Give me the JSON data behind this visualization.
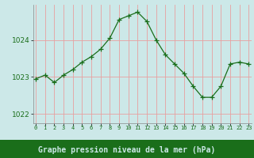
{
  "x": [
    0,
    1,
    2,
    3,
    4,
    5,
    6,
    7,
    8,
    9,
    10,
    11,
    12,
    13,
    14,
    15,
    16,
    17,
    18,
    19,
    20,
    21,
    22,
    23
  ],
  "y": [
    1022.95,
    1023.05,
    1022.85,
    1023.05,
    1023.2,
    1023.4,
    1023.55,
    1023.75,
    1024.05,
    1024.55,
    1024.65,
    1024.75,
    1024.5,
    1024.0,
    1023.6,
    1023.35,
    1023.1,
    1022.75,
    1022.45,
    1022.45,
    1022.75,
    1023.35,
    1023.4,
    1023.35
  ],
  "line_color": "#1a6e1a",
  "marker": "+",
  "marker_size": 4,
  "marker_color": "#1a6e1a",
  "bg_color": "#cce8e8",
  "bottom_bg_color": "#1a6e1a",
  "grid_color": "#e8a0a0",
  "ylabel_ticks": [
    1022,
    1023,
    1024
  ],
  "xlabel": "Graphe pression niveau de la mer (hPa)",
  "xlabel_fontsize": 7,
  "xlabel_bold": true,
  "xlabel_color": "#cce8e8",
  "xtick_label_color": "#1a6e1a",
  "ytick_label_color": "#1a6e1a",
  "ylim": [
    1021.75,
    1024.95
  ],
  "xlim": [
    -0.3,
    23.3
  ]
}
